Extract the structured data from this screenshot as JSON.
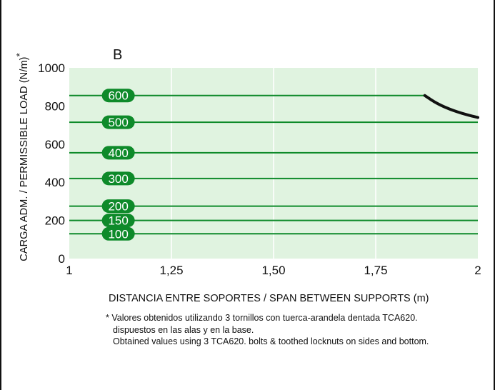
{
  "panel_label": "B",
  "footnotes": [
    "* Valores obtenidos utilizando 3 tornillos con tuerca-arandela dentada TCA620.",
    "dispuestos en las alas y en la base.",
    "Obtained values using 3 TCA620. bolts & toothed locknuts on sides and bottom."
  ],
  "colors": {
    "plot_background": "#e0f3e0",
    "gridline": "#ffffff",
    "series_line": "#0e8a2a",
    "label_badge": "#0e8a2a",
    "label_text": "#ffffff",
    "limit_curve": "#111111"
  },
  "chart_data": {
    "type": "line",
    "xlabel": "DISTANCIA ENTRE SOPORTES / SPAN BETWEEN SUPPORTS (m)",
    "ylabel": "CARGA ADM. / PERMISSIBLE LOAD (N/m)",
    "ylabel_suffix": "*",
    "xlim": [
      1,
      2
    ],
    "ylim": [
      0,
      1000
    ],
    "x_ticks": [
      1,
      1.25,
      1.5,
      1.75,
      2
    ],
    "x_tick_labels": [
      "1",
      "1,25",
      "1,50",
      "1,75",
      "2"
    ],
    "y_ticks": [
      0,
      200,
      400,
      600,
      800,
      1000
    ],
    "y_tick_labels": [
      "0",
      "200",
      "400",
      "600",
      "800",
      "1000"
    ],
    "grid": true,
    "series": [
      {
        "name": "600",
        "x": [
          1,
          1.87
        ],
        "y": [
          855,
          855
        ]
      },
      {
        "name": "500",
        "x": [
          1,
          2
        ],
        "y": [
          715,
          715
        ]
      },
      {
        "name": "400",
        "x": [
          1,
          2
        ],
        "y": [
          555,
          555
        ]
      },
      {
        "name": "300",
        "x": [
          1,
          2
        ],
        "y": [
          420,
          420
        ]
      },
      {
        "name": "200",
        "x": [
          1,
          2
        ],
        "y": [
          275,
          275
        ]
      },
      {
        "name": "150",
        "x": [
          1,
          2
        ],
        "y": [
          200,
          200
        ]
      },
      {
        "name": "100",
        "x": [
          1,
          2
        ],
        "y": [
          130,
          130
        ]
      }
    ],
    "series_label_x": 1.12,
    "limit_curve": {
      "x": [
        1.87,
        1.9,
        1.94,
        1.98,
        2
      ],
      "y": [
        855,
        812,
        775,
        750,
        740
      ]
    }
  }
}
